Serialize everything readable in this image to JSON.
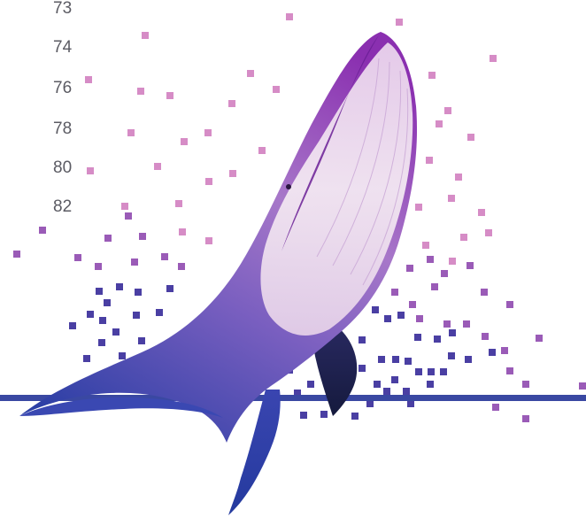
{
  "numbers": [
    "73",
    "74",
    "76",
    "78",
    "80",
    "82"
  ],
  "colors": {
    "background": "#ffffff",
    "pixel_light": "#d68cc6",
    "pixel_mid": "#9a5bb7",
    "pixel_dark": "#4a3fa3",
    "band": "#3a48a2",
    "whale_top": "#8a3fb3",
    "whale_belly": "#f2e6f1",
    "whale_tail": "#2c3fa5",
    "number_text": "#5b5b63"
  },
  "image": {
    "subject": "whale-illustration",
    "style": "pixel-dissolve"
  }
}
